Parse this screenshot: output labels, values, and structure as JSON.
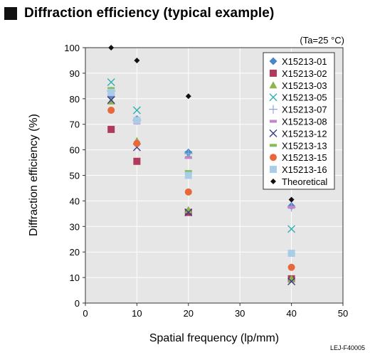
{
  "heading": "Diffraction efficiency (typical example)",
  "condition_note": "(Ta=25 °C)",
  "doc_code": "LEJ-F40005",
  "chart_data": {
    "type": "scatter",
    "title": "Diffraction efficiency (typical example)",
    "xlabel": "Spatial frequency (lp/mm)",
    "ylabel": "Diffraction efficiency (%)",
    "xlim": [
      0,
      50
    ],
    "ylim": [
      0,
      100
    ],
    "xticks": [
      0,
      10,
      20,
      30,
      40,
      50
    ],
    "yticks": [
      0,
      10,
      20,
      30,
      40,
      50,
      60,
      70,
      80,
      90,
      100
    ],
    "grid": true,
    "legend_position": "top-right",
    "series": [
      {
        "name": "X15213-01",
        "marker": "diamond",
        "color": "#4a86c8",
        "x": [
          5,
          10,
          20,
          40
        ],
        "y": [
          81,
          72,
          59,
          38
        ]
      },
      {
        "name": "X15213-02",
        "marker": "square",
        "color": "#b03a5b",
        "x": [
          5,
          10,
          20,
          40
        ],
        "y": [
          68,
          55.5,
          35.5,
          9.5
        ]
      },
      {
        "name": "X15213-03",
        "marker": "triangle",
        "color": "#8db54a",
        "x": [
          5,
          10,
          20,
          40
        ],
        "y": [
          79,
          63.5,
          36.5,
          9.5
        ]
      },
      {
        "name": "X15213-05",
        "marker": "x",
        "color": "#2fb0b4",
        "x": [
          5,
          10,
          20,
          40
        ],
        "y": [
          86.5,
          75.5,
          58,
          29
        ]
      },
      {
        "name": "X15213-07",
        "marker": "plus",
        "color": "#8fa6d8",
        "x": [
          5,
          10,
          20,
          40
        ],
        "y": [
          83,
          71.5,
          58.5,
          37.5
        ]
      },
      {
        "name": "X15213-08",
        "marker": "dash",
        "color": "#c584c8",
        "x": [
          5,
          10,
          20,
          40
        ],
        "y": [
          81.5,
          70.5,
          57,
          37.5
        ]
      },
      {
        "name": "X15213-12",
        "marker": "x",
        "color": "#3b3a8c",
        "x": [
          5,
          10,
          20,
          40
        ],
        "y": [
          79.5,
          61,
          35.5,
          8.5
        ]
      },
      {
        "name": "X15213-13",
        "marker": "dash",
        "color": "#7ebf5a",
        "x": [
          5,
          10,
          20,
          40
        ],
        "y": [
          84,
          71.5,
          51.5,
          19.5
        ]
      },
      {
        "name": "X15213-15",
        "marker": "circle",
        "color": "#e8683a",
        "x": [
          5,
          10,
          20,
          40
        ],
        "y": [
          75.5,
          62.5,
          43.5,
          14
        ]
      },
      {
        "name": "X15213-16",
        "marker": "square",
        "color": "#a9cde6",
        "x": [
          5,
          10,
          20,
          40
        ],
        "y": [
          82.5,
          71.5,
          50,
          19.5
        ]
      },
      {
        "name": "Theoretical",
        "marker": "diamond-small",
        "color": "#111111",
        "x": [
          5,
          10,
          20,
          40
        ],
        "y": [
          100,
          95,
          81,
          40.5
        ]
      }
    ]
  }
}
